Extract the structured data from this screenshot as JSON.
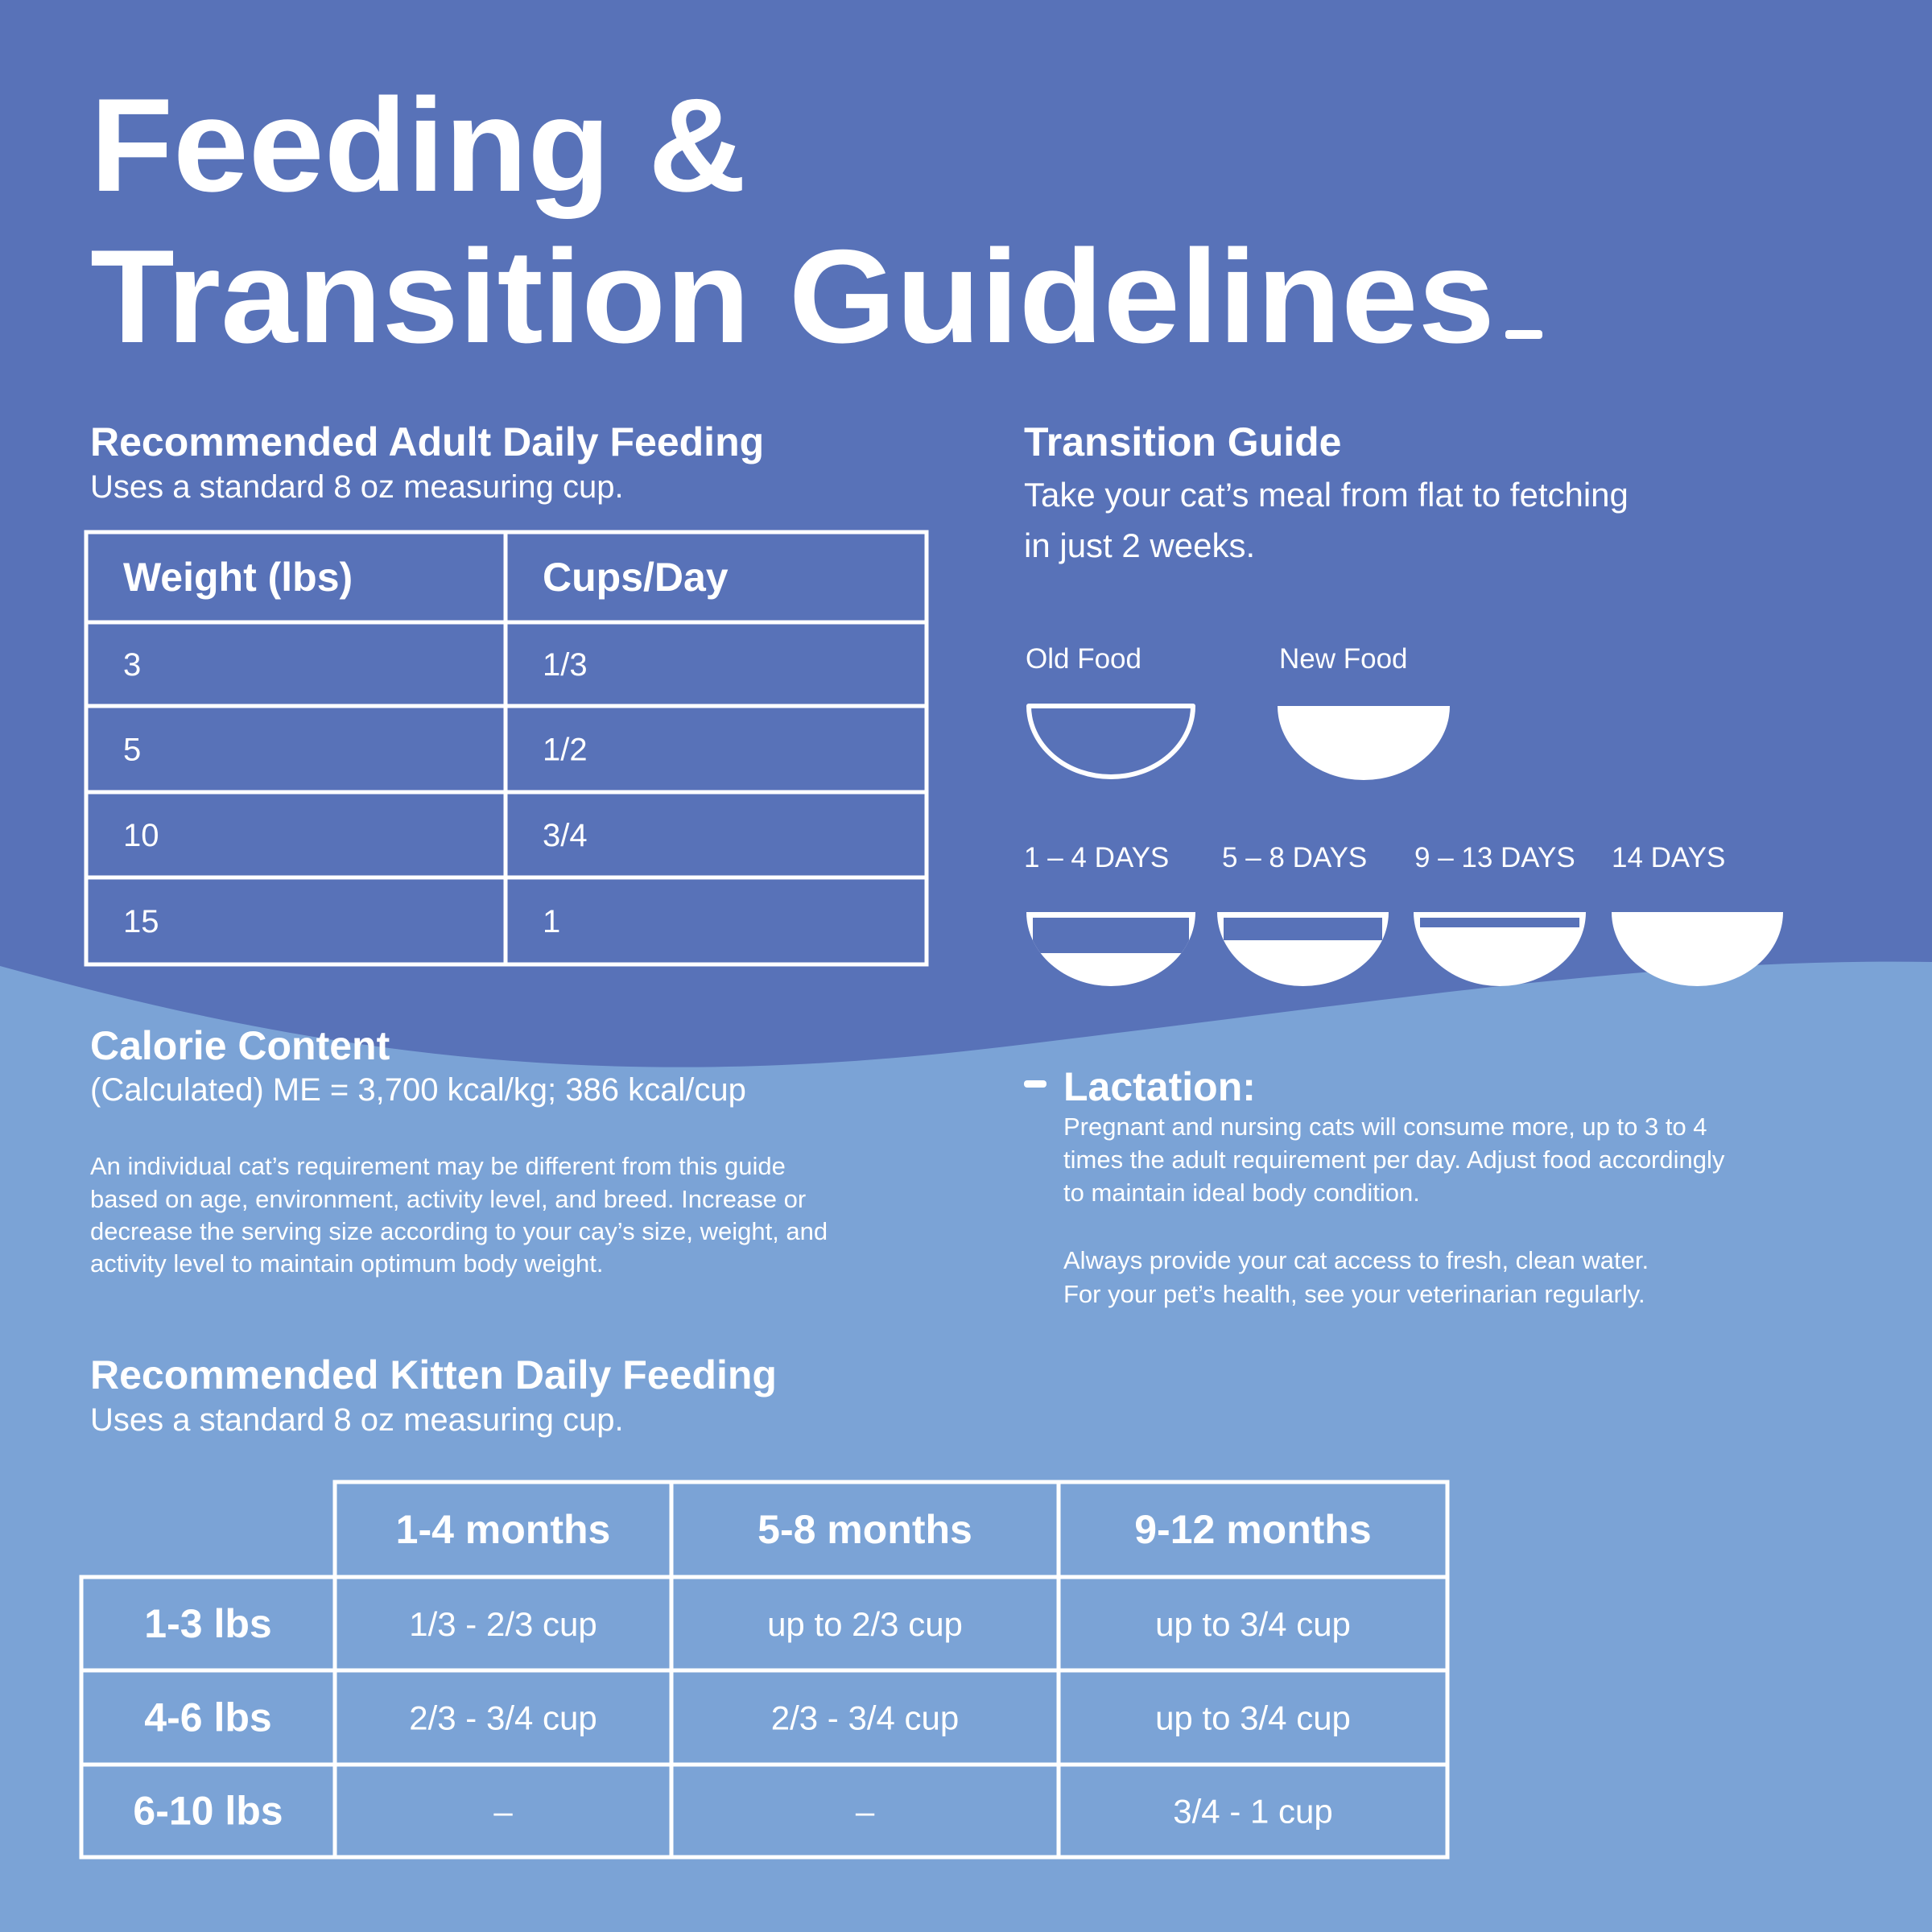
{
  "header": {
    "title_lines": [
      "Feeding &",
      "Transition Guidelines"
    ]
  },
  "adult_feeding": {
    "title": "Recommended Adult Daily Feeding",
    "subtitle": "Uses a standard 8 oz measuring cup.",
    "table": {
      "header": [
        "Weight (lbs)",
        "Cups/Day"
      ],
      "rows": [
        [
          "3",
          "1/3"
        ],
        [
          "5",
          "1/2"
        ],
        [
          "10",
          "3/4"
        ],
        [
          "15",
          "1"
        ]
      ]
    }
  },
  "transition": {
    "title": "Transition Guide",
    "text_lines": [
      "Take your cat’s meal from flat to fetching",
      "in just 2 weeks."
    ],
    "legend": [
      "Old Food",
      "New Food"
    ],
    "stages": [
      "1 – 4 DAYS",
      "5 – 8 DAYS",
      "9 – 13 DAYS",
      "14 DAYS"
    ]
  },
  "calorie": {
    "title": "Calorie Content",
    "value": "(Calculated) ME = 3,700 kcal/kg; 386 kcal/cup",
    "note_lines": [
      "An individual cat’s requirement may be different from this guide",
      "based on age, environment, activity level, and breed. Increase or",
      "decrease the serving size according to your cay’s size, weight, and",
      "activity level to maintain optimum body weight."
    ]
  },
  "lactation": {
    "title": "Lactation:",
    "lines": [
      "Pregnant and nursing cats will consume more, up to 3 to 4",
      "times the adult requirement per day. Adjust food accordingly",
      "to maintain ideal body condition."
    ],
    "water_lines": [
      "Always provide your cat access to fresh, clean water.",
      "For your pet’s health, see your veterinarian regularly."
    ]
  },
  "kitten_feeding": {
    "title": "Recommended Kitten Daily Feeding",
    "subtitle": "Uses a standard 8 oz measuring cup.",
    "table": {
      "columns": [
        "1-4 months",
        "5-8 months",
        "9-12 months"
      ],
      "rows": [
        {
          "label": "1-3 lbs",
          "cells": [
            "1/3 - 2/3 cup",
            "up to 2/3 cup",
            "up to 3/4 cup"
          ]
        },
        {
          "label": "4-6 lbs",
          "cells": [
            "2/3 - 3/4 cup",
            "2/3 - 3/4 cup",
            "up to 3/4 cup"
          ]
        },
        {
          "label": "6-10 lbs",
          "cells": [
            "–",
            "–",
            "3/4 - 1 cup"
          ]
        }
      ]
    }
  }
}
